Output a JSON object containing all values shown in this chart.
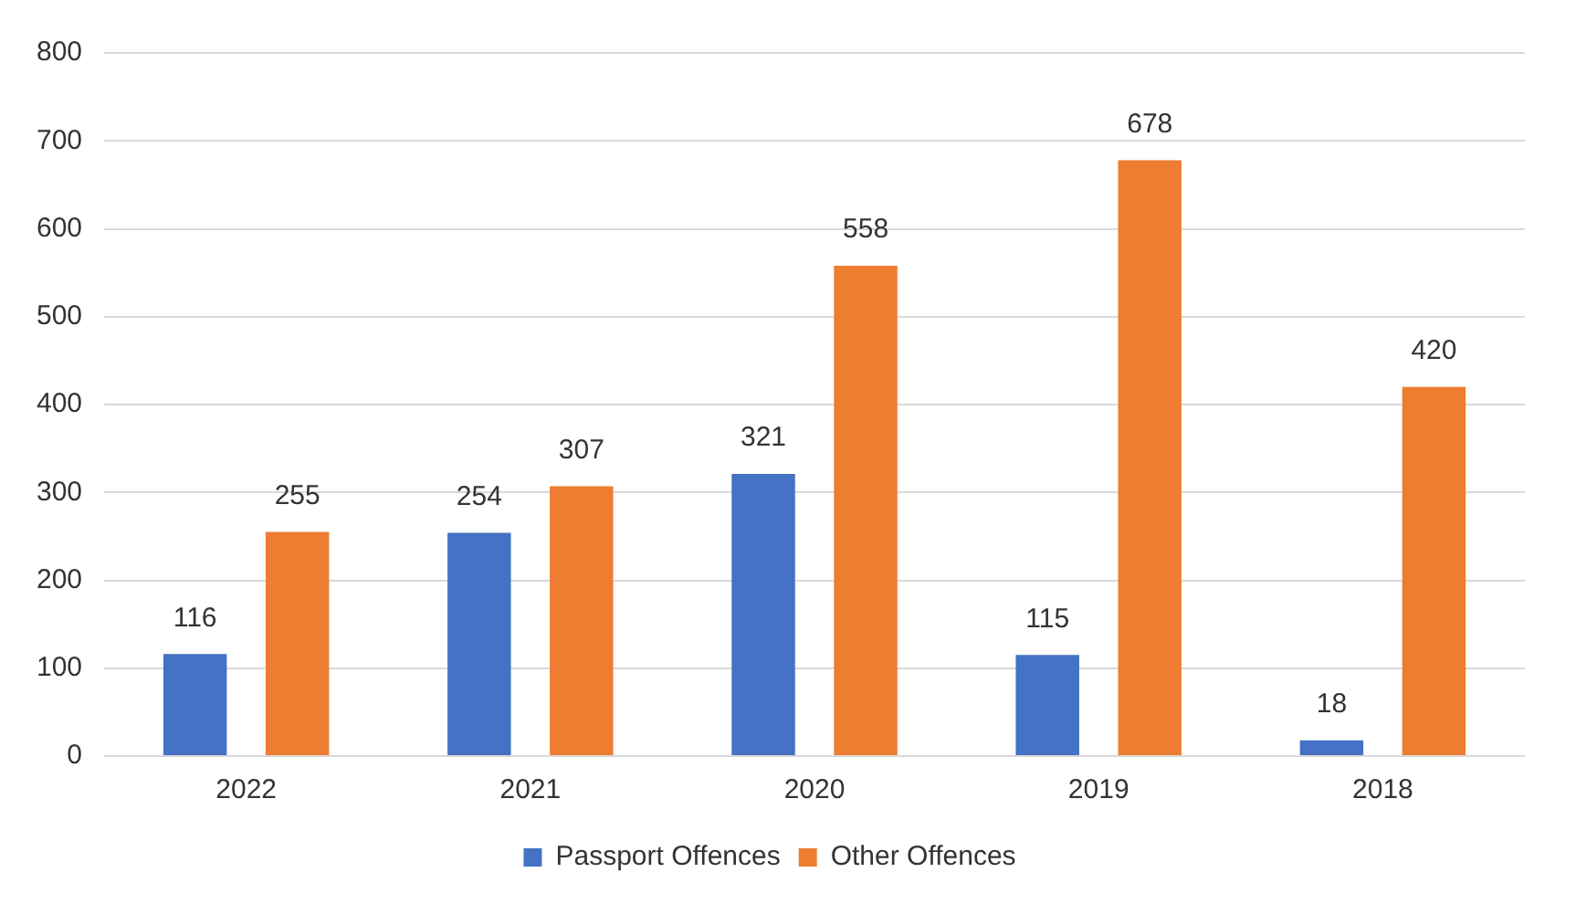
{
  "chart_data": {
    "type": "bar",
    "categories": [
      "2022",
      "2021",
      "2020",
      "2019",
      "2018"
    ],
    "series": [
      {
        "name": "Passport Offences",
        "color": "#4472c4",
        "values": [
          116,
          254,
          321,
          115,
          18
        ]
      },
      {
        "name": "Other Offences",
        "color": "#ed7d31",
        "values": [
          255,
          307,
          558,
          678,
          420
        ]
      }
    ],
    "ylim": [
      0,
      800
    ],
    "yticks": [
      0,
      100,
      200,
      300,
      400,
      500,
      600,
      700,
      800
    ],
    "grid": "y",
    "legend": "bottom",
    "data_labels": true
  }
}
